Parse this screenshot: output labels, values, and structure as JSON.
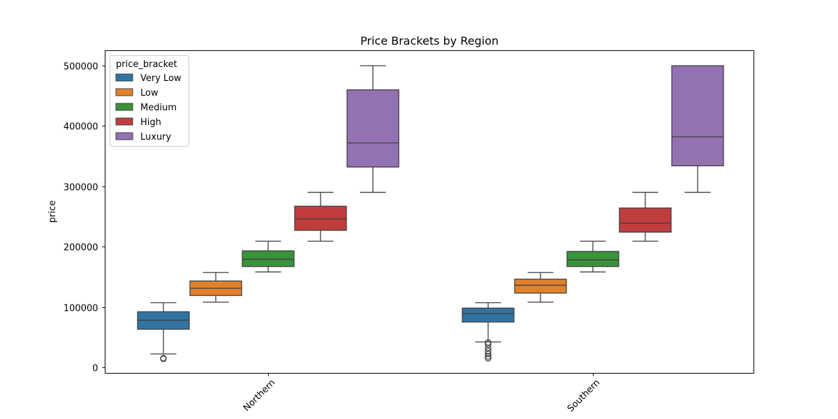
{
  "chart_data": {
    "type": "boxplot",
    "title": "Price Brackets by Region",
    "xlabel": "",
    "ylabel": "price",
    "ylim": [
      -10000,
      525000
    ],
    "yticks": [
      0,
      100000,
      200000,
      300000,
      400000,
      500000
    ],
    "ytick_labels": [
      "0",
      "100000",
      "200000",
      "300000",
      "400000",
      "500000"
    ],
    "categories": [
      "Northern",
      "Southern"
    ],
    "legend": {
      "title": "price_bracket",
      "placement": "top-left",
      "entries": [
        "Very Low",
        "Low",
        "Medium",
        "High",
        "Luxury"
      ]
    },
    "series": [
      {
        "name": "Very Low",
        "color": "#3274a1",
        "boxes": [
          {
            "whisker_low": 22000,
            "q1": 63000,
            "median": 78000,
            "q3": 92000,
            "whisker_high": 107000,
            "outliers": [
              15000,
              14000
            ]
          },
          {
            "whisker_low": 42000,
            "q1": 75000,
            "median": 89000,
            "q3": 98000,
            "whisker_high": 107000,
            "outliers": [
              41000,
              38000,
              32000,
              27000,
              22000,
              18000,
              15000
            ]
          }
        ]
      },
      {
        "name": "Low",
        "color": "#e1812c",
        "boxes": [
          {
            "whisker_low": 108000,
            "q1": 119000,
            "median": 131000,
            "q3": 143000,
            "whisker_high": 157000,
            "outliers": []
          },
          {
            "whisker_low": 108000,
            "q1": 123000,
            "median": 136000,
            "q3": 146000,
            "whisker_high": 157000,
            "outliers": []
          }
        ]
      },
      {
        "name": "Medium",
        "color": "#3a923a",
        "boxes": [
          {
            "whisker_low": 158000,
            "q1": 167000,
            "median": 179000,
            "q3": 193000,
            "whisker_high": 209000,
            "outliers": []
          },
          {
            "whisker_low": 158000,
            "q1": 167000,
            "median": 178000,
            "q3": 192000,
            "whisker_high": 209000,
            "outliers": []
          }
        ]
      },
      {
        "name": "High",
        "color": "#c03d3e",
        "boxes": [
          {
            "whisker_low": 209000,
            "q1": 227000,
            "median": 246000,
            "q3": 267000,
            "whisker_high": 290000,
            "outliers": []
          },
          {
            "whisker_low": 209000,
            "q1": 224000,
            "median": 239000,
            "q3": 264000,
            "whisker_high": 290000,
            "outliers": []
          }
        ]
      },
      {
        "name": "Luxury",
        "color": "#9372b2",
        "boxes": [
          {
            "whisker_low": 290000,
            "q1": 332000,
            "median": 372000,
            "q3": 460000,
            "whisker_high": 500000,
            "outliers": []
          },
          {
            "whisker_low": 290000,
            "q1": 334000,
            "median": 382000,
            "q3": 500000,
            "whisker_high": 500000,
            "outliers": []
          }
        ]
      }
    ]
  }
}
